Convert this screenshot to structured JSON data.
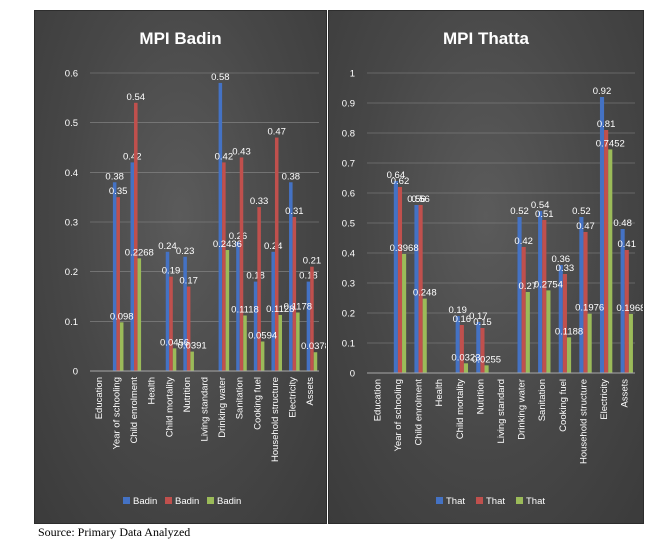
{
  "source_note": "Source: Primary Data Analyzed",
  "chart_data": [
    {
      "type": "bar",
      "title": "MPI Badin",
      "ylim": [
        0,
        0.6
      ],
      "yticks": [
        "0",
        "0.1",
        "0.2",
        "0.3",
        "0.4",
        "0.5",
        "0.6"
      ],
      "categories": [
        "Education",
        "Year of schooling",
        "Child enrolment",
        "Health",
        "Child mortality",
        "Nutrition",
        "Living standard",
        "Drinking water",
        "Sanitation",
        "Cooking fuel",
        "Household structure",
        "Electricity",
        "Assets"
      ],
      "series": [
        {
          "name": "Badin",
          "color": "#4472c4",
          "values": [
            null,
            0.38,
            0.42,
            null,
            0.24,
            0.23,
            null,
            0.58,
            0.26,
            0.18,
            0.24,
            0.38,
            0.18
          ],
          "labels": [
            "",
            "0.38",
            "0.42",
            "",
            "0.24",
            "0.23",
            "",
            "0.58",
            "0.26",
            "0.18",
            "0.24",
            "0.38",
            "0.18"
          ]
        },
        {
          "name": "Badin",
          "color": "#c0504d",
          "values": [
            null,
            0.35,
            0.54,
            null,
            0.19,
            0.17,
            null,
            0.42,
            0.43,
            0.33,
            0.47,
            0.31,
            0.21
          ],
          "labels": [
            "",
            "0.35",
            "0.54",
            "",
            "0.19",
            "0.17",
            "",
            "0.42",
            "0.43",
            "0.33",
            "0.47",
            "0.31",
            "0.21"
          ]
        },
        {
          "name": "Badin",
          "color": "#9bbb59",
          "values": [
            null,
            0.098,
            0.2268,
            null,
            0.0456,
            0.0391,
            null,
            0.2436,
            0.1118,
            0.0594,
            0.1128,
            0.1178,
            0.0378
          ],
          "labels": [
            "",
            "0.098",
            "0.2268",
            "",
            "0.0456",
            "0.0391",
            "",
            "0.2436",
            "0.1118",
            "0.0594",
            "0.1128",
            "0.1178",
            "0.0378"
          ]
        }
      ]
    },
    {
      "type": "bar",
      "title": "MPI Thatta",
      "ylim": [
        0,
        1
      ],
      "yticks": [
        "0",
        "0.1",
        "0.2",
        "0.3",
        "0.4",
        "0.5",
        "0.6",
        "0.7",
        "0.8",
        "0.9",
        "1"
      ],
      "categories": [
        "Education",
        "Year of schooling",
        "Child enrolment",
        "Health",
        "Child mortality",
        "Nutrition",
        "Living standard",
        "Drinking water",
        "Sanitation",
        "Cooking fuel",
        "Household structure",
        "Electricity",
        "Assets"
      ],
      "series": [
        {
          "name": "That",
          "color": "#4472c4",
          "values": [
            null,
            0.64,
            0.56,
            null,
            0.19,
            0.17,
            null,
            0.52,
            0.54,
            0.36,
            0.52,
            0.92,
            0.48
          ],
          "labels": [
            "",
            "0.64",
            "0.56",
            "",
            "0.19",
            "0.17",
            "",
            "0.52",
            "0.54",
            "0.36",
            "0.52",
            "0.92",
            "0.48"
          ]
        },
        {
          "name": "That",
          "color": "#c0504d",
          "values": [
            null,
            0.62,
            0.56,
            null,
            0.16,
            0.15,
            null,
            0.42,
            0.51,
            0.33,
            0.47,
            0.81,
            0.41
          ],
          "labels": [
            "",
            "0.62",
            "0.56",
            "",
            "0.16",
            "0.15",
            "",
            "0.42",
            "0.51",
            "0.33",
            "0.47",
            "0.81",
            "0.41"
          ]
        },
        {
          "name": "That",
          "color": "#9bbb59",
          "values": [
            null,
            0.3968,
            0.248,
            null,
            0.0323,
            0.0255,
            null,
            0.27,
            0.2754,
            0.1188,
            0.1976,
            0.7452,
            0.1968
          ],
          "labels": [
            "",
            "0.3968",
            "0.248",
            "",
            "0.0323",
            "0.0255",
            "",
            "0.27",
            "0.2754",
            "0.1188",
            "0.1976",
            "0.7452",
            "0.1968"
          ]
        }
      ]
    }
  ]
}
